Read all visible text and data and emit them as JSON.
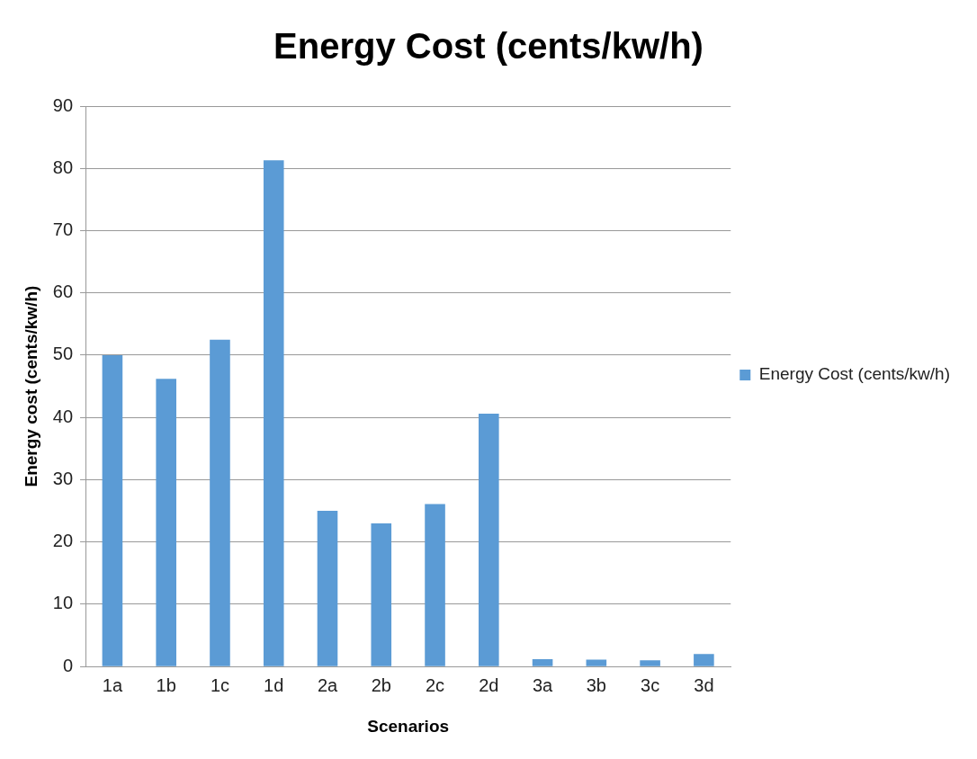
{
  "chart_data": {
    "type": "bar",
    "title": "Energy Cost (cents/kw/h)",
    "xlabel": "Scenarios",
    "ylabel": "Energy cost (cents/kw/h)",
    "categories": [
      "1a",
      "1b",
      "1c",
      "1d",
      "2a",
      "2b",
      "2c",
      "2d",
      "3a",
      "3b",
      "3c",
      "3d"
    ],
    "series": [
      {
        "name": "Energy Cost (cents/kw/h)",
        "color": "#5b9bd5",
        "values": [
          50.0,
          46.2,
          52.5,
          81.3,
          25.0,
          23.0,
          26.1,
          40.6,
          1.2,
          1.1,
          1.0,
          2.0
        ]
      }
    ],
    "ylim": [
      0,
      90
    ],
    "yticks": [
      0,
      10,
      20,
      30,
      40,
      50,
      60,
      70,
      80,
      90
    ],
    "grid": "y",
    "legend": "right"
  }
}
